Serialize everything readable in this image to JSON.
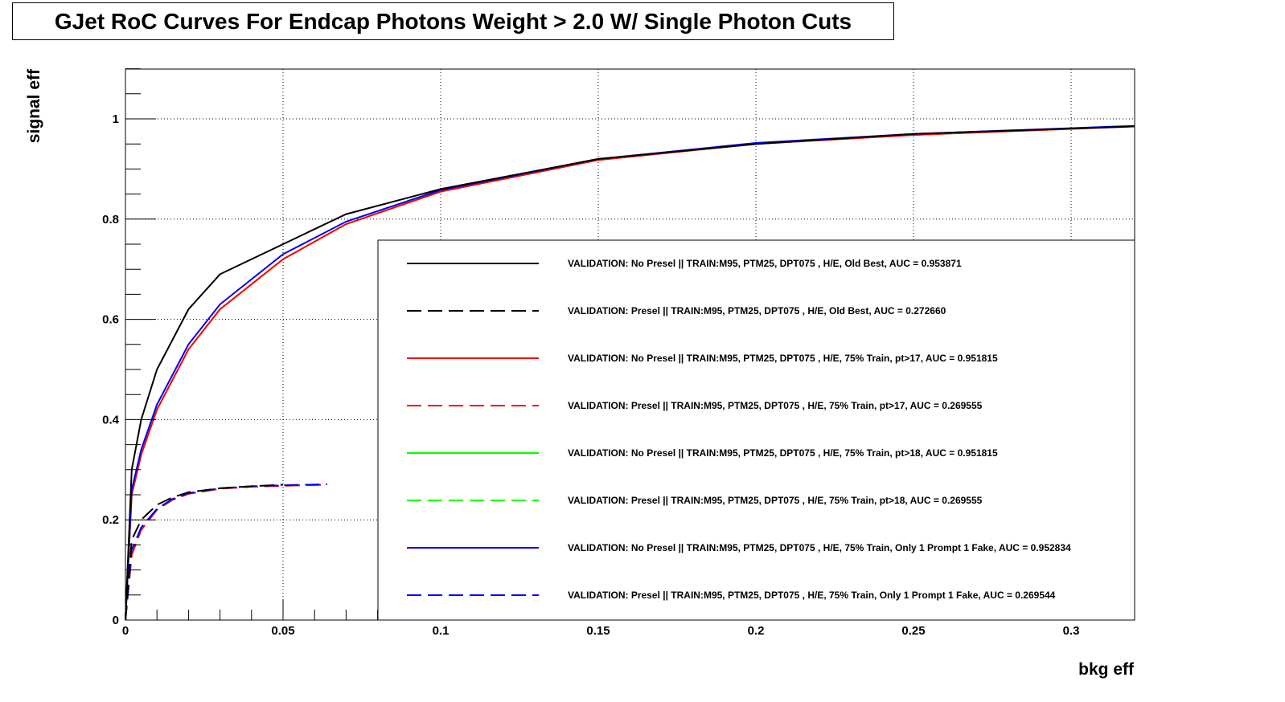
{
  "title": "GJet RoC Curves For Endcap Photons Weight > 2.0 W/ Single Photon Cuts",
  "colors": {
    "black": "#000000",
    "red": "#ff0000",
    "green": "#00ff00",
    "blue": "#0000ff",
    "grid": "#000000"
  },
  "chart_data": {
    "type": "line",
    "title": "GJet RoC Curves For Endcap Photons Weight > 2.0 W/ Single Photon Cuts",
    "xlabel": "bkg eff",
    "ylabel": "signal eff",
    "xlim": [
      0,
      0.32
    ],
    "ylim": [
      0,
      1.1
    ],
    "x_ticks": [
      0,
      0.05,
      0.1,
      0.15,
      0.2,
      0.25,
      0.3
    ],
    "x_tick_labels": [
      "0",
      "0.05",
      "0.1",
      "0.15",
      "0.2",
      "0.25",
      "0.3"
    ],
    "y_ticks": [
      0,
      0.2,
      0.4,
      0.6,
      0.8,
      1
    ],
    "y_tick_labels": [
      "0",
      "0.2",
      "0.4",
      "0.6",
      "0.8",
      "1"
    ],
    "grid": true,
    "legend_position": "lower-right",
    "series": [
      {
        "name": "VALIDATION: No Presel || TRAIN:M95, PTM25, DPT075 , H/E, Old Best, AUC = 0.953871",
        "color": "#000000",
        "dash": "solid",
        "x": [
          0,
          0.002,
          0.005,
          0.01,
          0.02,
          0.03,
          0.05,
          0.07,
          0.1,
          0.15,
          0.2,
          0.25,
          0.32
        ],
        "y": [
          0,
          0.3,
          0.4,
          0.5,
          0.62,
          0.69,
          0.75,
          0.81,
          0.86,
          0.92,
          0.95,
          0.97,
          0.985
        ]
      },
      {
        "name": "VALIDATION: Presel || TRAIN:M95, PTM25, DPT075 , H/E, Old Best, AUC = 0.272660",
        "color": "#000000",
        "dash": "dashed",
        "x": [
          0,
          0.002,
          0.005,
          0.01,
          0.015,
          0.02,
          0.03,
          0.04,
          0.05
        ],
        "y": [
          0,
          0.16,
          0.2,
          0.23,
          0.245,
          0.255,
          0.263,
          0.267,
          0.27
        ]
      },
      {
        "name": "VALIDATION: No Presel || TRAIN:M95, PTM25, DPT075 , H/E, 75% Train, pt>17, AUC = 0.951815",
        "color": "#ff0000",
        "dash": "solid",
        "x": [
          0,
          0.002,
          0.005,
          0.01,
          0.02,
          0.03,
          0.05,
          0.07,
          0.1,
          0.15,
          0.2,
          0.25,
          0.32
        ],
        "y": [
          0,
          0.25,
          0.33,
          0.42,
          0.54,
          0.62,
          0.72,
          0.79,
          0.855,
          0.918,
          0.95,
          0.968,
          0.985
        ]
      },
      {
        "name": "VALIDATION: Presel || TRAIN:M95, PTM25, DPT075 , H/E, 75% Train, pt>17, AUC = 0.269555",
        "color": "#ff0000",
        "dash": "dashed",
        "x": [
          0,
          0.002,
          0.005,
          0.01,
          0.015,
          0.02,
          0.03,
          0.04,
          0.05,
          0.064
        ],
        "y": [
          0,
          0.13,
          0.18,
          0.22,
          0.24,
          0.252,
          0.262,
          0.266,
          0.268,
          0.27
        ]
      },
      {
        "name": "VALIDATION: No Presel || TRAIN:M95, PTM25, DPT075 , H/E, 75% Train, pt>18, AUC = 0.951815",
        "color": "#00ff00",
        "dash": "solid",
        "x": [
          0,
          0.002,
          0.005,
          0.01,
          0.02,
          0.03,
          0.05,
          0.07,
          0.1,
          0.15,
          0.2,
          0.25,
          0.32
        ],
        "y": [
          0,
          0.25,
          0.33,
          0.42,
          0.54,
          0.62,
          0.72,
          0.79,
          0.855,
          0.918,
          0.95,
          0.968,
          0.985
        ]
      },
      {
        "name": "VALIDATION: Presel || TRAIN:M95, PTM25, DPT075 , H/E, 75% Train, pt>18, AUC = 0.269555",
        "color": "#00ff00",
        "dash": "dashed",
        "x": [
          0,
          0.002,
          0.005,
          0.01,
          0.015,
          0.02,
          0.03,
          0.04,
          0.05,
          0.064
        ],
        "y": [
          0,
          0.13,
          0.18,
          0.22,
          0.24,
          0.252,
          0.262,
          0.266,
          0.268,
          0.27
        ]
      },
      {
        "name": "VALIDATION: No Presel || TRAIN:M95, PTM25, DPT075 , H/E, 75% Train, Only 1 Prompt 1 Fake, AUC = 0.952834",
        "color": "#0000ff",
        "dash": "solid",
        "x": [
          0,
          0.002,
          0.005,
          0.01,
          0.02,
          0.03,
          0.05,
          0.07,
          0.1,
          0.15,
          0.2,
          0.25,
          0.32
        ],
        "y": [
          0,
          0.26,
          0.34,
          0.43,
          0.55,
          0.63,
          0.73,
          0.795,
          0.858,
          0.92,
          0.952,
          0.97,
          0.986
        ]
      },
      {
        "name": "VALIDATION: Presel || TRAIN:M95, PTM25, DPT075 , H/E, 75% Train, Only 1 Prompt 1 Fake, AUC = 0.269544",
        "color": "#0000ff",
        "dash": "dashed",
        "x": [
          0,
          0.002,
          0.005,
          0.01,
          0.015,
          0.02,
          0.03,
          0.04,
          0.05,
          0.064
        ],
        "y": [
          0,
          0.14,
          0.185,
          0.222,
          0.242,
          0.253,
          0.263,
          0.267,
          0.269,
          0.271
        ]
      }
    ]
  }
}
